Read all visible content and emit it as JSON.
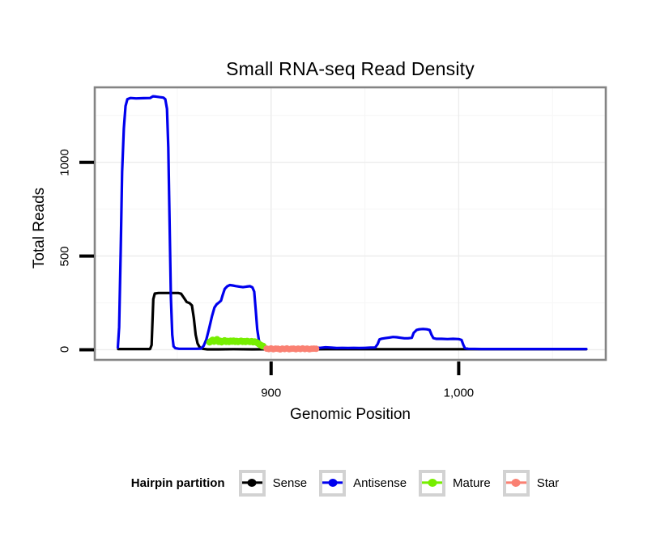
{
  "chart_data": {
    "type": "line",
    "title": "Small RNA-seq Read Density",
    "grid": "on",
    "x": {
      "label": "Genomic Position",
      "lim": [
        806,
        1078.4
      ],
      "major_ticks": [
        {
          "v": 900,
          "label": "900"
        },
        {
          "v": 1000,
          "label": "1,000"
        }
      ],
      "minor_gridlines": [
        850,
        950,
        1050
      ]
    },
    "y": {
      "label": "Total Reads",
      "lim": [
        -54,
        1400
      ],
      "major_ticks": [
        {
          "v": 0,
          "label": "0"
        },
        {
          "v": 500,
          "label": "500"
        },
        {
          "v": 1000,
          "label": "1000"
        }
      ],
      "minor_gridlines": [
        250,
        750,
        1250
      ]
    },
    "legend": {
      "position": "bottom",
      "title": "Hairpin partition",
      "items": [
        {
          "label": "Sense",
          "color": "#000000"
        },
        {
          "label": "Antisense",
          "color": "#0000EE"
        },
        {
          "label": "Mature",
          "color": "#76EE00"
        },
        {
          "label": "Star",
          "color": "#FA8072"
        }
      ]
    },
    "series": [
      {
        "name": "Sense",
        "color": "#000000",
        "kind": "line",
        "line_width": 3.2,
        "points": [
          [
            818.5,
            4
          ],
          [
            835.5,
            4
          ],
          [
            836.3,
            25
          ],
          [
            837.2,
            270
          ],
          [
            838,
            300
          ],
          [
            840,
            303
          ],
          [
            850.5,
            303
          ],
          [
            852,
            299
          ],
          [
            853.5,
            278
          ],
          [
            855,
            255
          ],
          [
            856.5,
            249
          ],
          [
            857.8,
            236
          ],
          [
            858.8,
            170
          ],
          [
            859.8,
            80
          ],
          [
            860.8,
            34
          ],
          [
            862,
            12
          ],
          [
            863.5,
            5
          ],
          [
            866,
            2
          ],
          [
            872,
            2
          ],
          [
            880,
            3
          ],
          [
            890,
            2
          ],
          [
            902,
            3
          ],
          [
            915,
            2
          ],
          [
            930,
            3
          ],
          [
            945,
            3
          ],
          [
            960,
            3
          ],
          [
            975,
            3
          ],
          [
            990,
            3
          ],
          [
            1005,
            3
          ],
          [
            1020,
            3
          ],
          [
            1040,
            3
          ],
          [
            1055,
            3
          ],
          [
            1068,
            3
          ]
        ]
      },
      {
        "name": "Antisense",
        "color": "#0000EE",
        "kind": "line",
        "line_width": 3.2,
        "points": [
          [
            818.3,
            12
          ],
          [
            819,
            120
          ],
          [
            819.8,
            520
          ],
          [
            820.6,
            950
          ],
          [
            821.5,
            1180
          ],
          [
            822.4,
            1300
          ],
          [
            823.4,
            1337
          ],
          [
            825,
            1343
          ],
          [
            828,
            1341
          ],
          [
            832,
            1342
          ],
          [
            835.5,
            1343
          ],
          [
            837,
            1352
          ],
          [
            838.5,
            1351
          ],
          [
            840.5,
            1348
          ],
          [
            842.5,
            1345
          ],
          [
            843.6,
            1337
          ],
          [
            844.5,
            1285
          ],
          [
            845.2,
            1080
          ],
          [
            845.9,
            680
          ],
          [
            846.6,
            280
          ],
          [
            847.3,
            80
          ],
          [
            848,
            18
          ],
          [
            849,
            8
          ],
          [
            851,
            5
          ],
          [
            854,
            5
          ],
          [
            857,
            5
          ],
          [
            860,
            5
          ],
          [
            862.5,
            6
          ],
          [
            864,
            20
          ],
          [
            865.5,
            55
          ],
          [
            867,
            115
          ],
          [
            868.5,
            180
          ],
          [
            869.8,
            225
          ],
          [
            871,
            243
          ],
          [
            872.2,
            252
          ],
          [
            873.3,
            262
          ],
          [
            874.3,
            295
          ],
          [
            875.3,
            325
          ],
          [
            876.6,
            338
          ],
          [
            878,
            345
          ],
          [
            879.5,
            343
          ],
          [
            881,
            340
          ],
          [
            883,
            337
          ],
          [
            885,
            334
          ],
          [
            887,
            337
          ],
          [
            888.8,
            339
          ],
          [
            890,
            333
          ],
          [
            891,
            310
          ],
          [
            891.8,
            210
          ],
          [
            892.6,
            110
          ],
          [
            893.5,
            50
          ],
          [
            894.5,
            25
          ],
          [
            895.7,
            15
          ],
          [
            897,
            10
          ],
          [
            899,
            8
          ],
          [
            902,
            8
          ],
          [
            905,
            10
          ],
          [
            908,
            9
          ],
          [
            911,
            13
          ],
          [
            914,
            11
          ],
          [
            917,
            9
          ],
          [
            920,
            10
          ],
          [
            923,
            12
          ],
          [
            926,
            10
          ],
          [
            929,
            13
          ],
          [
            932,
            11
          ],
          [
            935,
            9
          ],
          [
            938,
            10
          ],
          [
            941,
            9
          ],
          [
            944,
            10
          ],
          [
            947,
            9
          ],
          [
            950,
            10
          ],
          [
            953,
            11
          ],
          [
            955.5,
            12
          ],
          [
            956.8,
            30
          ],
          [
            957.8,
            55
          ],
          [
            959,
            59
          ],
          [
            961,
            62
          ],
          [
            963,
            65
          ],
          [
            965,
            68
          ],
          [
            967,
            67
          ],
          [
            969,
            64
          ],
          [
            971,
            61
          ],
          [
            973,
            61
          ],
          [
            975,
            64
          ],
          [
            976,
            90
          ],
          [
            977.5,
            105
          ],
          [
            979,
            109
          ],
          [
            981,
            111
          ],
          [
            983,
            109
          ],
          [
            984.5,
            105
          ],
          [
            985.5,
            80
          ],
          [
            986.5,
            62
          ],
          [
            988,
            58
          ],
          [
            991,
            58
          ],
          [
            994,
            57
          ],
          [
            997,
            58
          ],
          [
            1000,
            57
          ],
          [
            1001.5,
            52
          ],
          [
            1002.5,
            25
          ],
          [
            1003.3,
            9
          ],
          [
            1005,
            5
          ],
          [
            1012,
            4
          ],
          [
            1030,
            4
          ],
          [
            1050,
            4
          ],
          [
            1068,
            4
          ]
        ]
      },
      {
        "name": "Mature",
        "color": "#76EE00",
        "kind": "points",
        "marker_radius": 4.2,
        "points": [
          [
            867.2,
            40
          ],
          [
            868,
            46
          ],
          [
            868.8,
            52
          ],
          [
            869.6,
            44
          ],
          [
            870.4,
            48
          ],
          [
            871.2,
            55
          ],
          [
            872,
            43
          ],
          [
            872.8,
            47
          ],
          [
            873.6,
            41
          ],
          [
            874.4,
            45
          ],
          [
            875.2,
            49
          ],
          [
            876,
            43
          ],
          [
            876.8,
            46
          ],
          [
            877.6,
            42
          ],
          [
            878.4,
            47
          ],
          [
            879.2,
            44
          ],
          [
            880,
            48
          ],
          [
            880.8,
            43
          ],
          [
            881.6,
            46
          ],
          [
            882.4,
            42
          ],
          [
            883.2,
            45
          ],
          [
            884,
            47
          ],
          [
            884.8,
            43
          ],
          [
            885.6,
            45
          ],
          [
            886.4,
            42
          ],
          [
            887.2,
            46
          ],
          [
            888,
            44
          ],
          [
            888.8,
            42
          ],
          [
            889.6,
            45
          ],
          [
            890.4,
            41
          ],
          [
            891.2,
            43
          ],
          [
            892,
            40
          ],
          [
            892.8,
            36
          ],
          [
            893.6,
            30
          ],
          [
            894.4,
            25
          ],
          [
            895.2,
            21
          ],
          [
            895.8,
            19
          ]
        ]
      },
      {
        "name": "Star",
        "color": "#FA8072",
        "kind": "points",
        "marker_radius": 4,
        "points": [
          [
            897.6,
            6
          ],
          [
            898.8,
            4
          ],
          [
            900,
            7
          ],
          [
            901.2,
            3
          ],
          [
            902.4,
            6
          ],
          [
            903.6,
            5
          ],
          [
            904.8,
            2
          ],
          [
            906,
            6
          ],
          [
            907.2,
            4
          ],
          [
            908.4,
            7
          ],
          [
            909.6,
            3
          ],
          [
            910.8,
            5
          ],
          [
            912,
            6
          ],
          [
            913.2,
            3
          ],
          [
            914.4,
            6
          ],
          [
            915.6,
            4
          ],
          [
            916.8,
            7
          ],
          [
            918,
            4
          ],
          [
            919.2,
            6
          ],
          [
            920.4,
            3
          ],
          [
            921.6,
            5
          ],
          [
            922.8,
            6
          ],
          [
            924,
            5
          ]
        ]
      }
    ],
    "style": {
      "panel_background": "#ffffff",
      "panel_border": "#848484",
      "grid_major_color": "#ececec",
      "grid_minor_color": "#f6f6f6",
      "tick_color": "#000000"
    }
  }
}
